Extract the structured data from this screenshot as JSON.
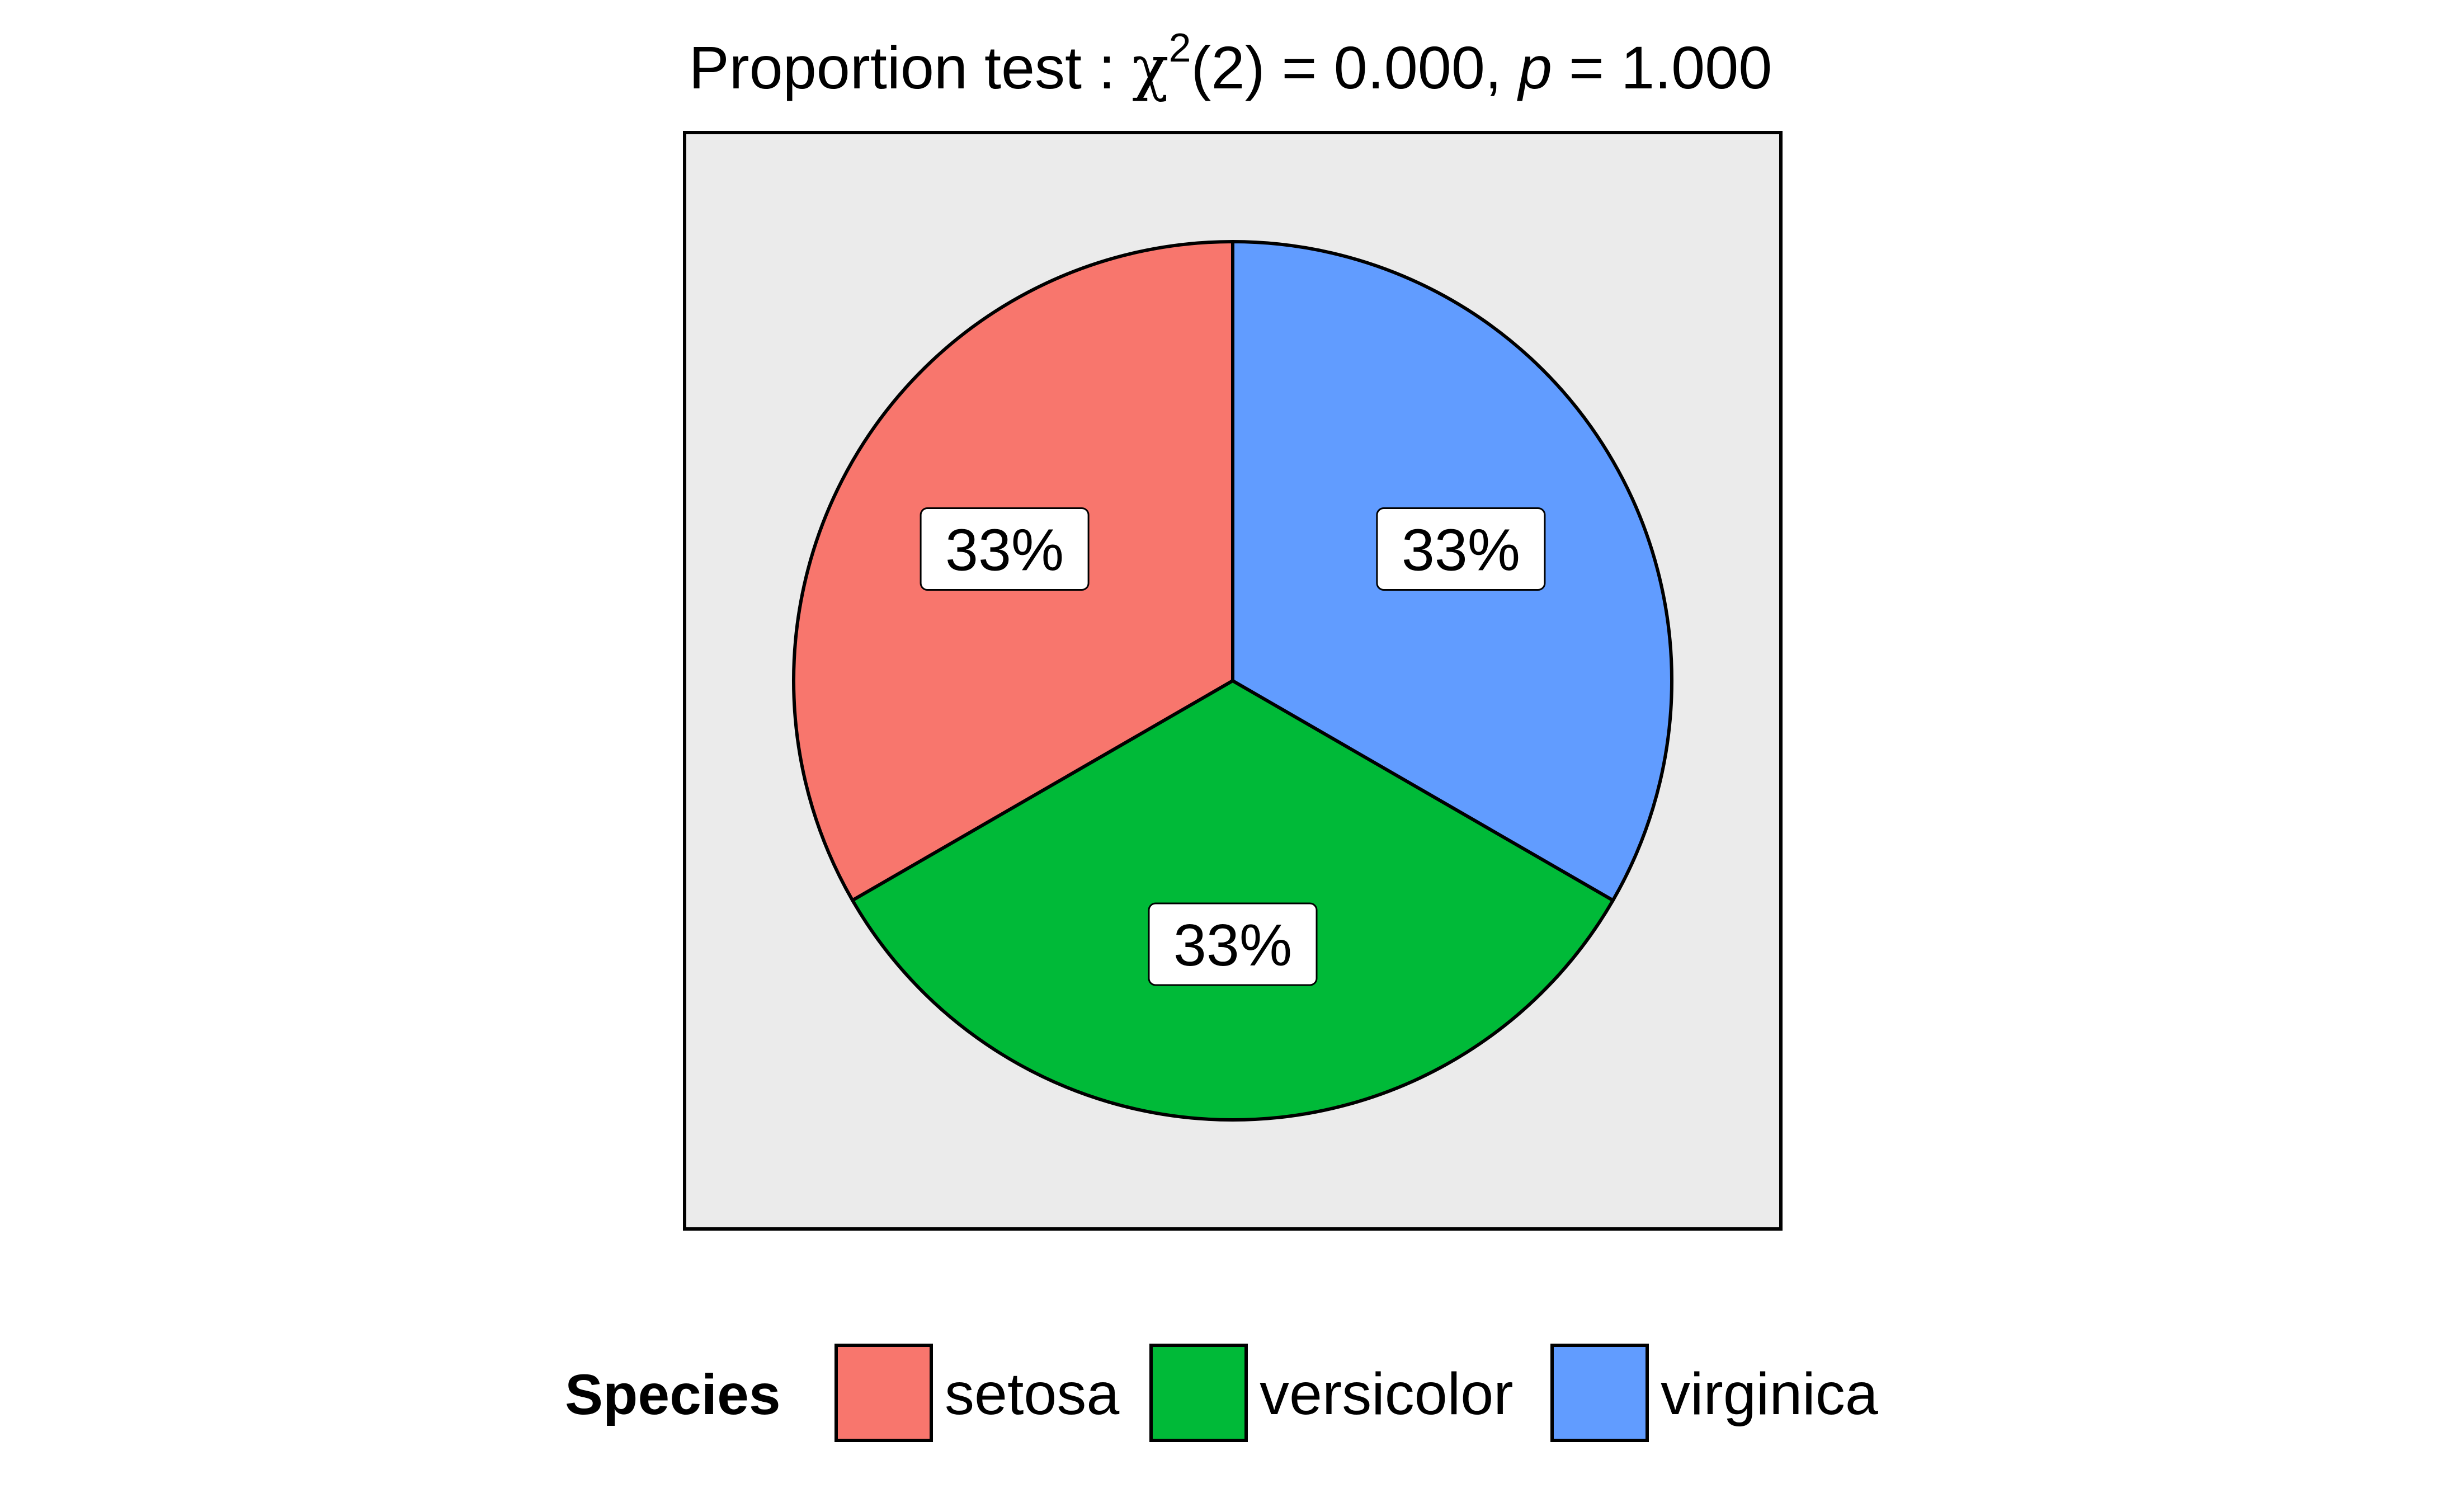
{
  "chart_data": {
    "type": "pie",
    "title": {
      "prefix": "Proportion test : ",
      "stat_symbol": "χ",
      "stat_superscript": "2",
      "stat_df": "(2) = 0.000, ",
      "p_symbol": "p",
      "p_rest": " = 1.000"
    },
    "start_angle_deg": 0,
    "direction": "counterclockwise",
    "slices": [
      {
        "name": "setosa",
        "value": 33.333,
        "label": "33%",
        "color": "#F8766D"
      },
      {
        "name": "versicolor",
        "value": 33.333,
        "label": "33%",
        "color": "#00BA38"
      },
      {
        "name": "virginica",
        "value": 33.333,
        "label": "33%",
        "color": "#619CFF"
      }
    ],
    "panel_background": "#EBEBEB",
    "legend": {
      "title": "Species",
      "position": "bottom"
    }
  }
}
